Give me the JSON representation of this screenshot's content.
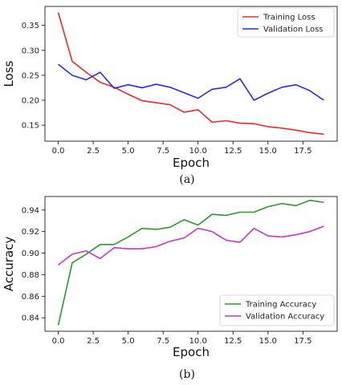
{
  "chart_data": [
    {
      "type": "line",
      "caption": "(a)",
      "xlabel": "Epoch",
      "ylabel": "Loss",
      "xlim": [
        -0.95,
        19.95
      ],
      "ylim": [
        0.118,
        0.388
      ],
      "xticks": [
        0.0,
        2.5,
        5.0,
        7.5,
        10.0,
        12.5,
        15.0,
        17.5
      ],
      "yticks": [
        0.15,
        0.2,
        0.25,
        0.3,
        0.35
      ],
      "xtick_labels": [
        "0.0",
        "2.5",
        "5.0",
        "7.5",
        "10.0",
        "12.5",
        "15.0",
        "17.5"
      ],
      "ytick_labels": [
        "0.15",
        "0.20",
        "0.25",
        "0.30",
        "0.35"
      ],
      "grid": false,
      "legend_position": "top-right",
      "x": [
        0,
        1,
        2,
        3,
        4,
        5,
        6,
        7,
        8,
        9,
        10,
        11,
        12,
        13,
        14,
        15,
        16,
        17,
        18,
        19
      ],
      "series": [
        {
          "name": "Training Loss",
          "color": "#ee2a2a",
          "values": [
            0.376,
            0.278,
            0.256,
            0.236,
            0.226,
            0.212,
            0.199,
            0.195,
            0.191,
            0.176,
            0.181,
            0.156,
            0.159,
            0.154,
            0.153,
            0.147,
            0.144,
            0.14,
            0.135,
            0.132
          ]
        },
        {
          "name": "Validation Loss",
          "color": "#2a2aee",
          "values": [
            0.272,
            0.25,
            0.241,
            0.256,
            0.224,
            0.231,
            0.225,
            0.232,
            0.226,
            0.215,
            0.204,
            0.222,
            0.226,
            0.243,
            0.2,
            0.214,
            0.226,
            0.231,
            0.219,
            0.2
          ]
        }
      ]
    },
    {
      "type": "line",
      "caption": "(b)",
      "xlabel": "Epoch",
      "ylabel": "Accuracy",
      "xlim": [
        -0.95,
        19.95
      ],
      "ylim": [
        0.8275,
        0.9525
      ],
      "xticks": [
        0.0,
        2.5,
        5.0,
        7.5,
        10.0,
        12.5,
        15.0,
        17.5
      ],
      "yticks": [
        0.84,
        0.86,
        0.88,
        0.9,
        0.92,
        0.94
      ],
      "xtick_labels": [
        "0.0",
        "2.5",
        "5.0",
        "7.5",
        "10.0",
        "12.5",
        "15.0",
        "17.5"
      ],
      "ytick_labels": [
        "0.84",
        "0.86",
        "0.88",
        "0.90",
        "0.92",
        "0.94"
      ],
      "grid": false,
      "legend_position": "bottom-right",
      "x": [
        0,
        1,
        2,
        3,
        4,
        5,
        6,
        7,
        8,
        9,
        10,
        11,
        12,
        13,
        14,
        15,
        16,
        17,
        18,
        19
      ],
      "series": [
        {
          "name": "Training Accuracy",
          "color": "#2a9a2a",
          "values": [
            0.833,
            0.891,
            0.899,
            0.908,
            0.908,
            0.915,
            0.923,
            0.922,
            0.924,
            0.931,
            0.926,
            0.936,
            0.935,
            0.938,
            0.938,
            0.943,
            0.946,
            0.944,
            0.949,
            0.947
          ]
        },
        {
          "name": "Validation Accuracy",
          "color": "#cc33cc",
          "values": [
            0.889,
            0.899,
            0.902,
            0.895,
            0.905,
            0.904,
            0.904,
            0.906,
            0.911,
            0.914,
            0.923,
            0.92,
            0.912,
            0.91,
            0.923,
            0.916,
            0.915,
            0.917,
            0.92,
            0.925
          ]
        }
      ]
    }
  ]
}
